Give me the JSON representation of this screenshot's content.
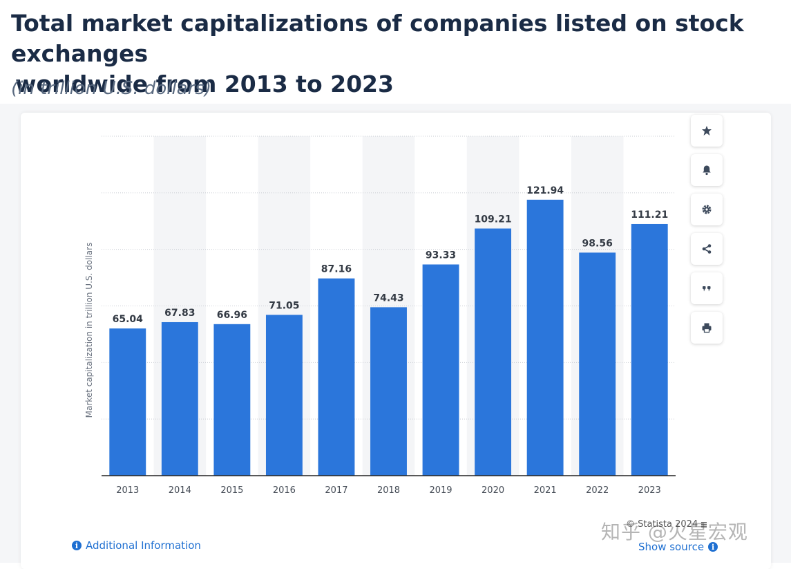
{
  "header": {
    "title_line1": "Total market capitalizations of companies listed on stock exchanges",
    "title_line2": "worldwide from 2013  to 2023",
    "subtitle": "(in trillion U.S. dollars)"
  },
  "chart_data": {
    "type": "bar",
    "categories": [
      "2013",
      "2014",
      "2015",
      "2016",
      "2017",
      "2018",
      "2019",
      "2020",
      "2021",
      "2022",
      "2023"
    ],
    "values": [
      65.04,
      67.83,
      66.96,
      71.05,
      87.16,
      74.43,
      93.33,
      109.21,
      121.94,
      98.56,
      111.21
    ],
    "value_labels": [
      "65.04",
      "67.83",
      "66.96",
      "71.05",
      "87.16",
      "74.43",
      "93.33",
      "109.21",
      "121.94",
      "98.56",
      "111.21"
    ],
    "title": "Total market capitalizations of companies listed on stock exchanges worldwide from 2013 to 2023",
    "xlabel": "",
    "ylabel": "Market capitalization in trillion U.S. dollars",
    "ylim": [
      0,
      150
    ],
    "gridlines": [
      25,
      50,
      75,
      100,
      125,
      150
    ],
    "grid": true,
    "bar_color": "#2b76db"
  },
  "toolbar": {
    "items": [
      {
        "name": "star",
        "icon": "star-icon"
      },
      {
        "name": "bell",
        "icon": "bell-icon"
      },
      {
        "name": "settings",
        "icon": "gear-icon"
      },
      {
        "name": "share",
        "icon": "share-icon"
      },
      {
        "name": "cite",
        "icon": "quote-icon"
      },
      {
        "name": "print",
        "icon": "print-icon"
      }
    ]
  },
  "footer": {
    "additional_info": "Additional Information",
    "credit": "© Statista 2024",
    "show_source": "Show source",
    "watermark": "知乎 @火星宏观"
  },
  "colors": {
    "accent": "#1e6fd1",
    "title": "#1a2b45"
  }
}
